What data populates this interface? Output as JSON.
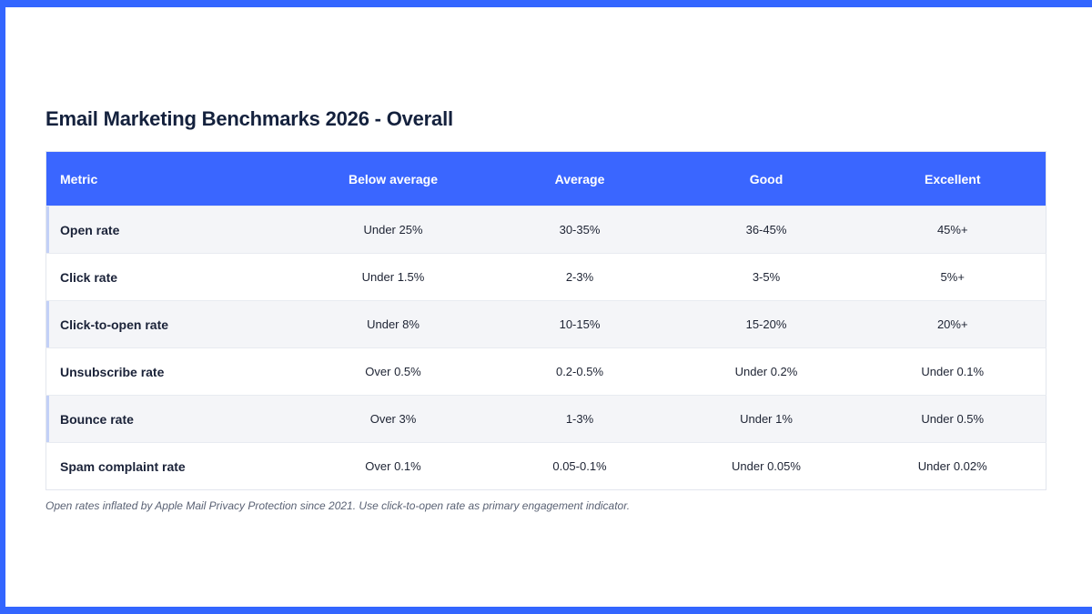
{
  "page": {
    "title": "Email Marketing Benchmarks 2026 - Overall",
    "footnote": "Open rates inflated by Apple Mail Privacy Protection since 2021. Use click-to-open rate as primary engagement indicator."
  },
  "table": {
    "headers": [
      "Metric",
      "Below average",
      "Average",
      "Good",
      "Excellent"
    ],
    "rows": [
      {
        "metric": "Open rate",
        "below": "Under 25%",
        "average": "30-35%",
        "good": "36-45%",
        "excellent": "45%+"
      },
      {
        "metric": "Click rate",
        "below": "Under 1.5%",
        "average": "2-3%",
        "good": "3-5%",
        "excellent": "5%+"
      },
      {
        "metric": "Click-to-open rate",
        "below": "Under 8%",
        "average": "10-15%",
        "good": "15-20%",
        "excellent": "20%+"
      },
      {
        "metric": "Unsubscribe rate",
        "below": "Over 0.5%",
        "average": "0.2-0.5%",
        "good": "Under 0.2%",
        "excellent": "Under 0.1%"
      },
      {
        "metric": "Bounce rate",
        "below": "Over 3%",
        "average": "1-3%",
        "good": "Under 1%",
        "excellent": "Under 0.5%"
      },
      {
        "metric": "Spam complaint rate",
        "below": "Over 0.1%",
        "average": "0.05-0.1%",
        "good": "Under 0.05%",
        "excellent": "Under 0.02%"
      }
    ]
  },
  "colors": {
    "accent": "#3366ff",
    "header_bg": "#3a66ff",
    "title_text": "#14213d",
    "shaded_row": "#f4f5f8",
    "row_marker": "#c3d0f7"
  }
}
